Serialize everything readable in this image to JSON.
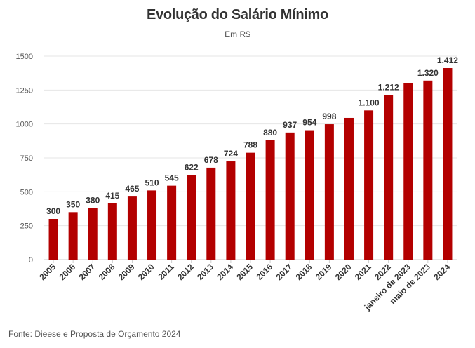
{
  "chart_data": {
    "type": "bar",
    "title": "Evolução do Salário Mínimo",
    "subtitle": "Em R$",
    "xlabel": "",
    "ylabel": "",
    "ylim": [
      0,
      1500
    ],
    "yticks": [
      0,
      250,
      500,
      750,
      1000,
      1250,
      1500
    ],
    "grid": true,
    "categories": [
      "2005",
      "2006",
      "2007",
      "2008",
      "2009",
      "2010",
      "2011",
      "2012",
      "2013",
      "2014",
      "2015",
      "2016",
      "2017",
      "2018",
      "2019",
      "2020",
      "2021",
      "2022",
      "janeiro de 2023",
      "maio de 2023",
      "2024"
    ],
    "values": [
      300,
      350,
      380,
      415,
      465,
      510,
      545,
      622,
      678,
      724,
      788,
      880,
      937,
      954,
      998,
      1045,
      1100,
      1212,
      1302,
      1320,
      1412
    ],
    "data_labels": [
      "300",
      "350",
      "380",
      "415",
      "465",
      "510",
      "545",
      "622",
      "678",
      "724",
      "788",
      "880",
      "937",
      "954",
      "998",
      "",
      "1.100",
      "1.212",
      "",
      "1.320",
      "1.412"
    ],
    "bar_color": "#b30000",
    "source": "Fonte: Dieese e Proposta de Orçamento 2024"
  }
}
